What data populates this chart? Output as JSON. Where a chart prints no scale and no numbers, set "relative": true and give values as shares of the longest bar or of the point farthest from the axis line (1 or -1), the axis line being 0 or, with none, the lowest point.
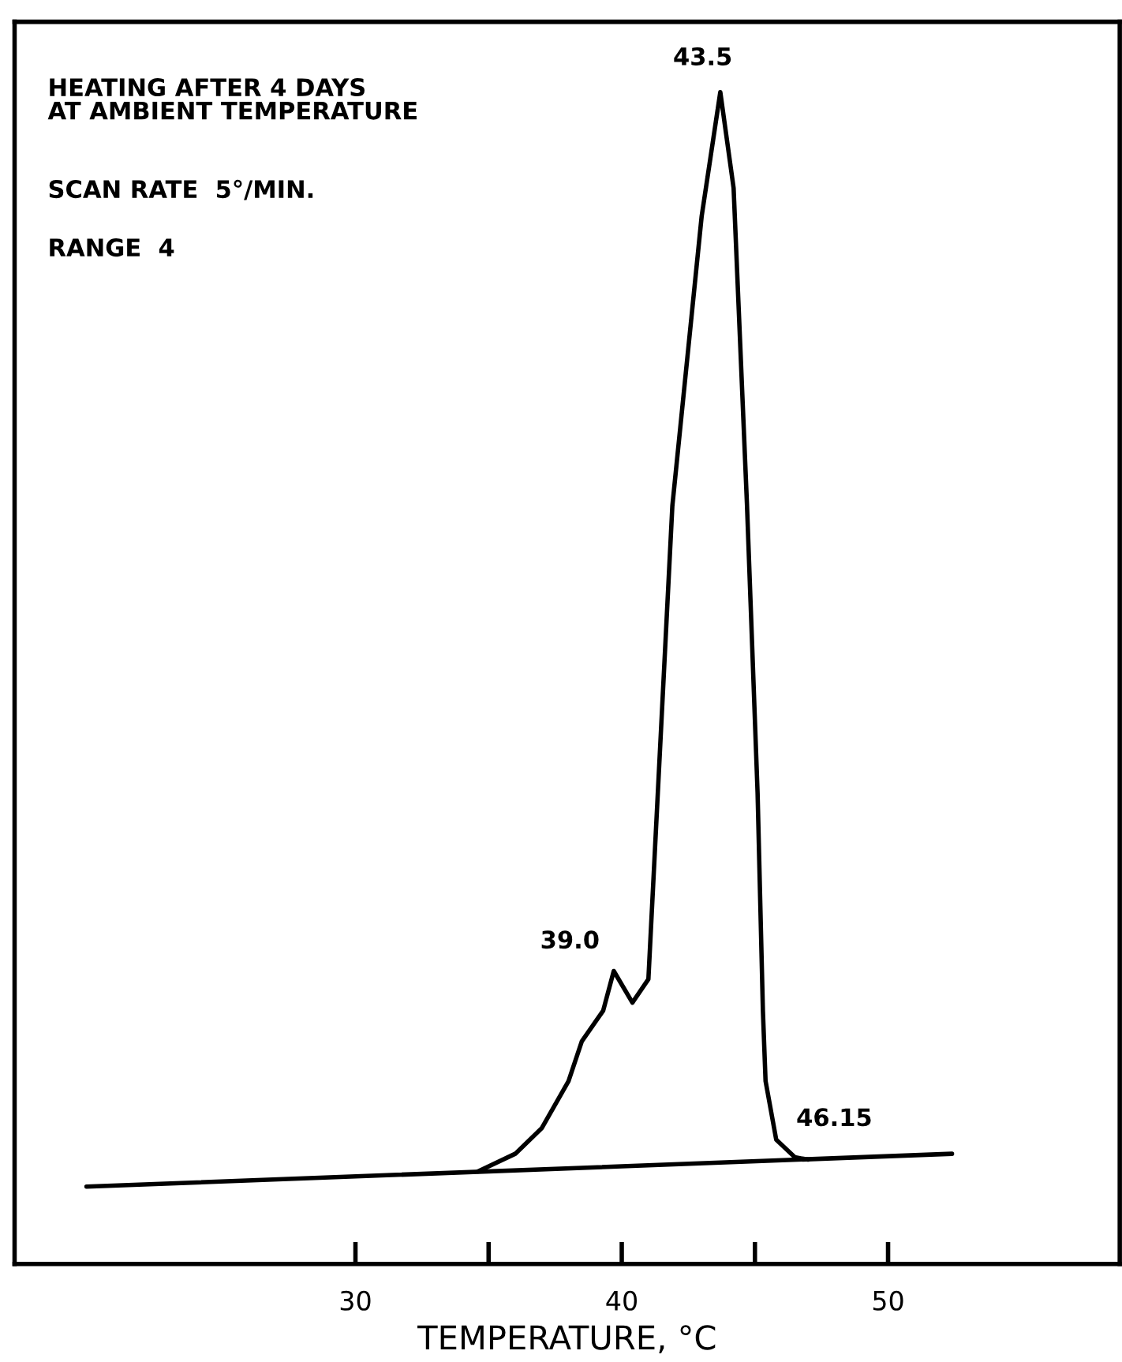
{
  "chart_data": {
    "type": "line",
    "relative": true,
    "xlabel": "TEMPERATURE, °C",
    "tick_labels": "x",
    "grid": false,
    "legend": false,
    "marker": "none",
    "line_style": "solid",
    "xlim": [
      17.2,
      58.7
    ],
    "xticks": [
      30,
      {
        "value": 35,
        "label": null
      },
      40,
      {
        "value": 45,
        "label": null
      },
      50
    ],
    "series": [
      {
        "color": "#000000",
        "x": [
          19.9,
          52.4
        ],
        "values": [
          0.066,
          0.094
        ]
      },
      {
        "color": "#000000",
        "x": [
          34.6,
          36.0,
          37.0,
          38.0,
          38.5,
          39.3,
          39.7,
          40.4,
          41.0,
          41.9,
          43.0,
          43.7,
          44.2,
          44.7,
          45.1,
          45.3,
          45.4,
          45.8,
          46.5,
          47.0
        ],
        "values": [
          0.079,
          0.094,
          0.116,
          0.156,
          0.19,
          0.216,
          0.25,
          0.223,
          0.243,
          0.647,
          0.894,
          1,
          0.918,
          0.649,
          0.402,
          0.216,
          0.156,
          0.106,
          0.091,
          0.089
        ]
      }
    ],
    "annotations": [
      "HEATING AFTER 4 DAYS\nAT AMBIENT TEMPERATURE",
      "SCAN RATE  5°/MIN.",
      "RANGE  4",
      {
        "text": "43.5",
        "x": 43.7,
        "y": 1
      },
      {
        "text": "39.0",
        "x": 39.7,
        "y": 0.25
      },
      {
        "text": "46.15",
        "x": 46.5,
        "y": 0.091
      }
    ]
  }
}
